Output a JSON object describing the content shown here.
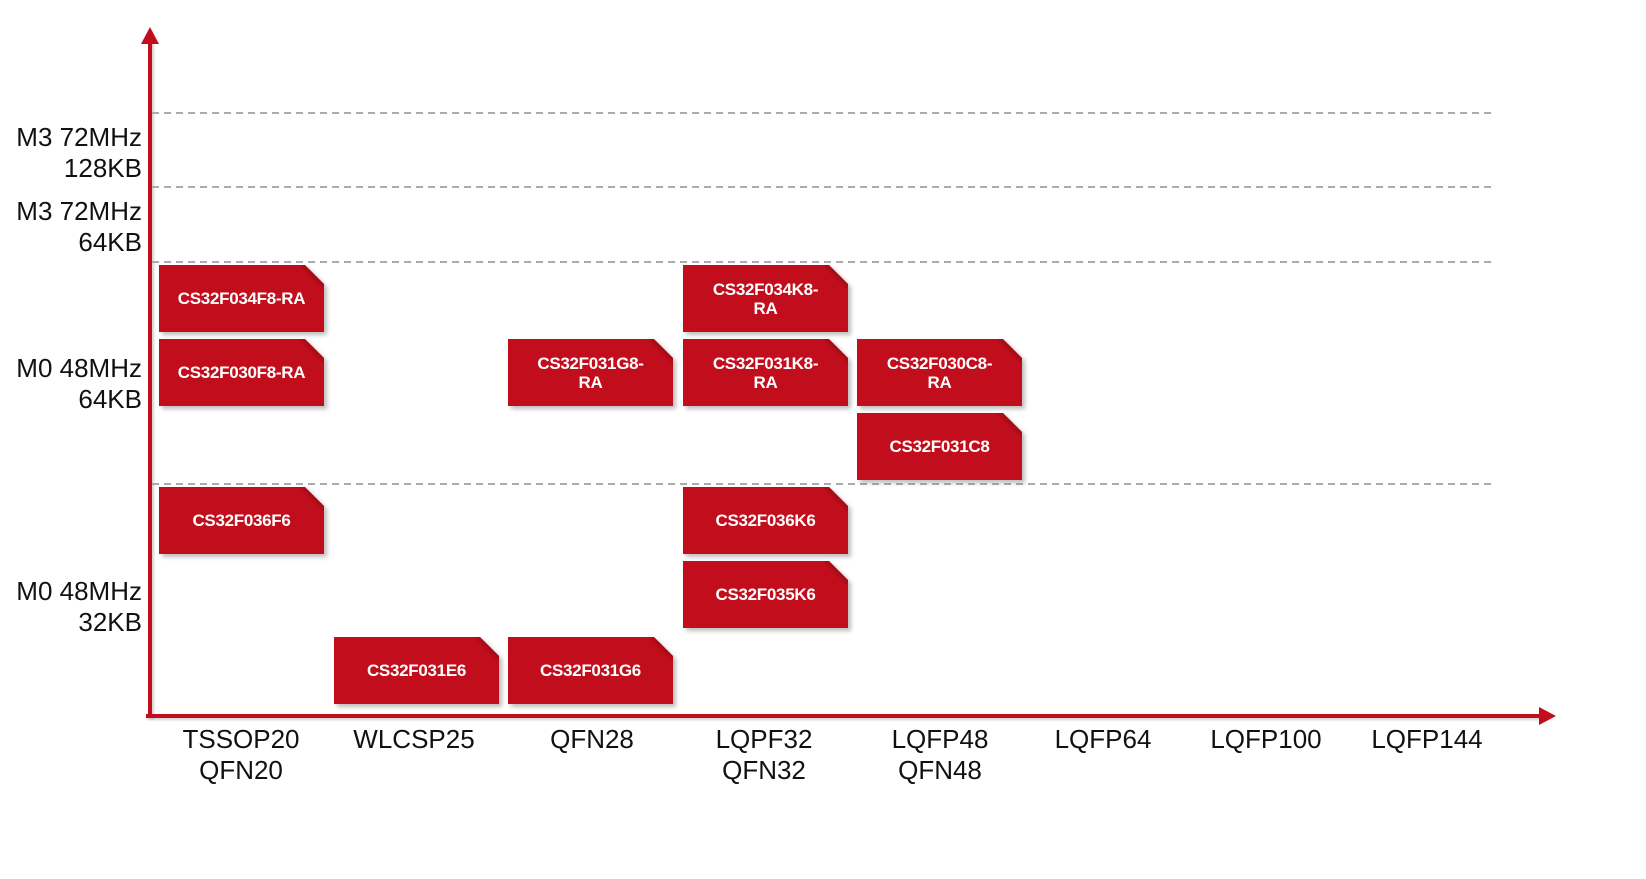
{
  "colors": {
    "accent_red": "#c20e1c",
    "grid_gray": "#ababab",
    "text_black": "#111111",
    "chip_text": "#ffffff"
  },
  "chart_data": {
    "type": "scatter",
    "title": "",
    "subtitle": "",
    "legend": [],
    "grid": "dashed horizontal band boundaries, light gray",
    "x_axis": {
      "label": "",
      "ticks": [
        {
          "lines": [
            "TSSOP20",
            "QFN20"
          ]
        },
        {
          "lines": [
            "WLCSP25"
          ]
        },
        {
          "lines": [
            "QFN28"
          ]
        },
        {
          "lines": [
            "LQPF32",
            "QFN32"
          ]
        },
        {
          "lines": [
            "LQFP48",
            "QFN48"
          ]
        },
        {
          "lines": [
            "LQFP64"
          ]
        },
        {
          "lines": [
            "LQFP100"
          ]
        },
        {
          "lines": [
            "LQFP144"
          ]
        }
      ]
    },
    "y_axis": {
      "label": "",
      "ticks": [
        {
          "lines": [
            "M3 72MHz",
            "128KB"
          ]
        },
        {
          "lines": [
            "M3 72MHz",
            "64KB"
          ]
        },
        {
          "lines": [
            "M0 48MHz",
            "64KB"
          ]
        },
        {
          "lines": [
            "M0 48MHz",
            "32KB"
          ]
        }
      ]
    },
    "parts": [
      {
        "name": "CS32F034F8-RA",
        "display_lines": [
          "CS32F034F8-RA"
        ],
        "package": "TSSOP20/QFN20",
        "band": "M0 48MHz 64KB",
        "col": 0,
        "row": 0
      },
      {
        "name": "CS32F030F8-RA",
        "display_lines": [
          "CS32F030F8-RA"
        ],
        "package": "TSSOP20/QFN20",
        "band": "M0 48MHz 64KB",
        "col": 0,
        "row": 1
      },
      {
        "name": "CS32F031G8-RA",
        "display_lines": [
          "CS32F031G8-",
          "RA"
        ],
        "package": "QFN28",
        "band": "M0 48MHz 64KB",
        "col": 2,
        "row": 1
      },
      {
        "name": "CS32F034K8-RA",
        "display_lines": [
          "CS32F034K8-",
          "RA"
        ],
        "package": "LQPF32/QFN32",
        "band": "M0 48MHz 64KB",
        "col": 3,
        "row": 0
      },
      {
        "name": "CS32F031K8-RA",
        "display_lines": [
          "CS32F031K8-",
          "RA"
        ],
        "package": "LQPF32/QFN32",
        "band": "M0 48MHz 64KB",
        "col": 3,
        "row": 1
      },
      {
        "name": "CS32F030C8-RA",
        "display_lines": [
          "CS32F030C8-",
          "RA"
        ],
        "package": "LQFP48/QFN48",
        "band": "M0 48MHz 64KB",
        "col": 4,
        "row": 1
      },
      {
        "name": "CS32F031C8",
        "display_lines": [
          "CS32F031C8"
        ],
        "package": "LQFP48/QFN48",
        "band": "M0 48MHz 64KB",
        "col": 4,
        "row": 2
      },
      {
        "name": "CS32F036F6",
        "display_lines": [
          "CS32F036F6"
        ],
        "package": "TSSOP20/QFN20",
        "band": "M0 48MHz 32KB",
        "col": 0,
        "row": 3
      },
      {
        "name": "CS32F036K6",
        "display_lines": [
          "CS32F036K6"
        ],
        "package": "LQPF32/QFN32",
        "band": "M0 48MHz 32KB",
        "col": 3,
        "row": 3
      },
      {
        "name": "CS32F035K6",
        "display_lines": [
          "CS32F035K6"
        ],
        "package": "LQPF32/QFN32",
        "band": "M0 48MHz 32KB",
        "col": 3,
        "row": 4
      },
      {
        "name": "CS32F031E6",
        "display_lines": [
          "CS32F031E6"
        ],
        "package": "WLCSP25",
        "band": "M0 48MHz 32KB",
        "col": 1,
        "row": 5
      },
      {
        "name": "CS32F031G6",
        "display_lines": [
          "CS32F031G6"
        ],
        "package": "QFN28",
        "band": "M0 48MHz 32KB",
        "col": 2,
        "row": 5
      }
    ]
  }
}
